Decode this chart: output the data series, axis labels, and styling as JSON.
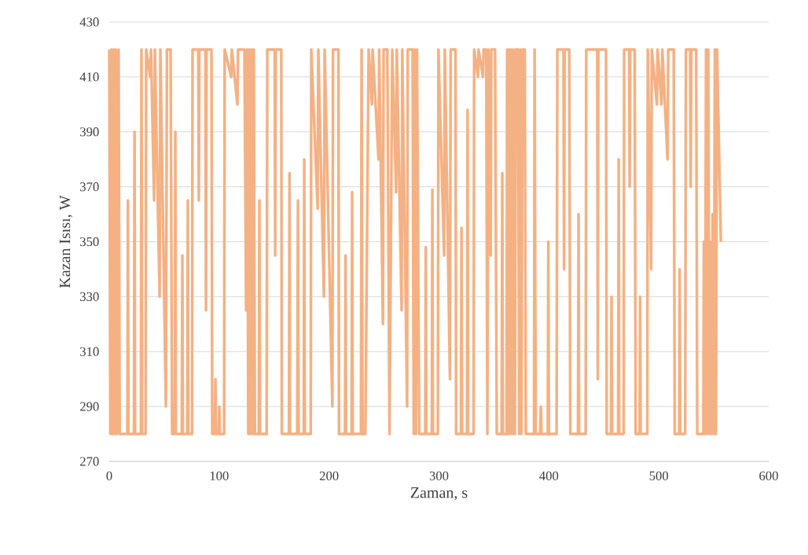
{
  "chart_data": {
    "type": "line",
    "xlabel": "Zaman, s",
    "ylabel": "Kazan Isısı, W",
    "color": "#f4b183",
    "marker": "none",
    "line_style": "solid",
    "grid": "y",
    "xlim": [
      0,
      600
    ],
    "ylim": [
      270,
      430
    ],
    "xticks": [
      0,
      100,
      200,
      300,
      400,
      500,
      600
    ],
    "yticks": [
      270,
      290,
      310,
      330,
      350,
      370,
      390,
      410,
      430
    ],
    "x": [
      0,
      1,
      2,
      3,
      4,
      5,
      6,
      7,
      8.5,
      9.5,
      16.5,
      17,
      17.5,
      22.5,
      23,
      23.5,
      28.8,
      29.3,
      30,
      33,
      33.6,
      37.2,
      38,
      40.8,
      41.5,
      45.8,
      46.5,
      51.5,
      52.5,
      55.8,
      57.2,
      59.6,
      60.1,
      60.6,
      66,
      66.5,
      67,
      71,
      71.5,
      72,
      75.3,
      75.8,
      81,
      81.5,
      82,
      87.5,
      88,
      88.5,
      93,
      93.7,
      96,
      96.6,
      97.2,
      99.6,
      100.1,
      100.6,
      104.5,
      105,
      111,
      111.5,
      116.6,
      117.2,
      123,
      124.5,
      125.5,
      126.5,
      127.5,
      128.5,
      129.5,
      130.5,
      131.5,
      132.5,
      136,
      136.6,
      137.2,
      143.2,
      143.8,
      150.5,
      151,
      151.5,
      156.5,
      157,
      163.5,
      164,
      164.5,
      171,
      171.7,
      172.3,
      177,
      177.4,
      177.9,
      183.3,
      183.8,
      189.6,
      190.2,
      195.3,
      196,
      203,
      203.6,
      208.5,
      209,
      214.5,
      215,
      215.5,
      220.5,
      221,
      221.5,
      229,
      229.6,
      230.5,
      233,
      236,
      239,
      239.6,
      245,
      245.6,
      249,
      249.6,
      253,
      255,
      257.5,
      261,
      261.6,
      266,
      266.6,
      271,
      271.6,
      276,
      277,
      278,
      279,
      280,
      282,
      287.5,
      288,
      288.5,
      293.5,
      294,
      294.5,
      299,
      299.5,
      304.7,
      305.3,
      310,
      310.6,
      315,
      315.6,
      320,
      320.5,
      321,
      325.5,
      326,
      326.5,
      331.5,
      332,
      335.5,
      336,
      340,
      340.6,
      343,
      344,
      345,
      347,
      347.6,
      351,
      352.6,
      357,
      357.6,
      358.2,
      361.5,
      362,
      363,
      364,
      365,
      366,
      367,
      368,
      369,
      370,
      372,
      373,
      374,
      375,
      376,
      378,
      379,
      386.5,
      387,
      388,
      392,
      392.7,
      393.3,
      399,
      399.5,
      400,
      407,
      407.7,
      413.3,
      413.8,
      414.3,
      418.5,
      419.5,
      426.5,
      427,
      427.5,
      433.5,
      434,
      444,
      444.5,
      445,
      452,
      452.6,
      456.5,
      457,
      457.5,
      463,
      463.5,
      464,
      468,
      468.5,
      473,
      473.5,
      474,
      478,
      479,
      482.5,
      483,
      483.5,
      489.5,
      490,
      493,
      493.6,
      498.3,
      498.9,
      502.5,
      503.2,
      508,
      508.6,
      513.6,
      514.5,
      518.5,
      519,
      519.5,
      524,
      524.7,
      528.5,
      529,
      529.6,
      534,
      535,
      540.5,
      541,
      542,
      543,
      544,
      545,
      546,
      547,
      548,
      549,
      550,
      551,
      552,
      553,
      556.5
    ],
    "values": [
      420,
      280,
      420,
      280,
      420,
      280,
      420,
      280,
      420,
      280,
      280,
      365,
      280,
      280,
      390,
      280,
      280,
      420,
      280,
      280,
      420,
      410,
      420,
      365,
      420,
      330,
      420,
      290,
      420,
      420,
      280,
      280,
      390,
      280,
      280,
      345,
      280,
      280,
      365,
      280,
      280,
      420,
      420,
      365,
      420,
      420,
      325,
      420,
      420,
      280,
      280,
      300,
      280,
      280,
      290,
      280,
      280,
      420,
      410,
      420,
      400,
      420,
      420,
      325,
      420,
      280,
      420,
      280,
      420,
      280,
      420,
      280,
      280,
      365,
      280,
      280,
      420,
      420,
      345,
      420,
      420,
      280,
      280,
      375,
      280,
      280,
      365,
      280,
      280,
      380,
      280,
      280,
      420,
      362,
      420,
      330,
      420,
      290,
      420,
      420,
      280,
      280,
      345,
      280,
      280,
      368,
      280,
      280,
      420,
      280,
      280,
      420,
      400,
      420,
      380,
      420,
      320,
      420,
      420,
      280,
      420,
      368,
      420,
      325,
      420,
      290,
      420,
      420,
      280,
      420,
      280,
      420,
      280,
      280,
      348,
      280,
      280,
      369,
      280,
      280,
      420,
      345,
      420,
      300,
      420,
      420,
      280,
      280,
      355,
      280,
      280,
      398,
      280,
      280,
      420,
      410,
      420,
      410,
      420,
      420,
      280,
      420,
      345,
      420,
      420,
      280,
      280,
      375,
      280,
      280,
      420,
      280,
      420,
      280,
      420,
      280,
      420,
      280,
      420,
      420,
      280,
      420,
      280,
      420,
      420,
      280,
      280,
      420,
      280,
      280,
      290,
      280,
      280,
      350,
      280,
      280,
      420,
      420,
      340,
      420,
      420,
      280,
      280,
      360,
      280,
      280,
      420,
      420,
      300,
      420,
      420,
      280,
      280,
      330,
      280,
      280,
      380,
      280,
      280,
      420,
      420,
      370,
      420,
      420,
      280,
      280,
      330,
      280,
      280,
      420,
      340,
      420,
      400,
      420,
      400,
      420,
      380,
      420,
      420,
      280,
      280,
      340,
      280,
      280,
      420,
      420,
      370,
      420,
      420,
      280,
      280,
      350,
      280,
      420,
      280,
      420,
      280,
      350,
      280,
      360,
      280,
      420,
      280,
      420,
      350
    ]
  }
}
